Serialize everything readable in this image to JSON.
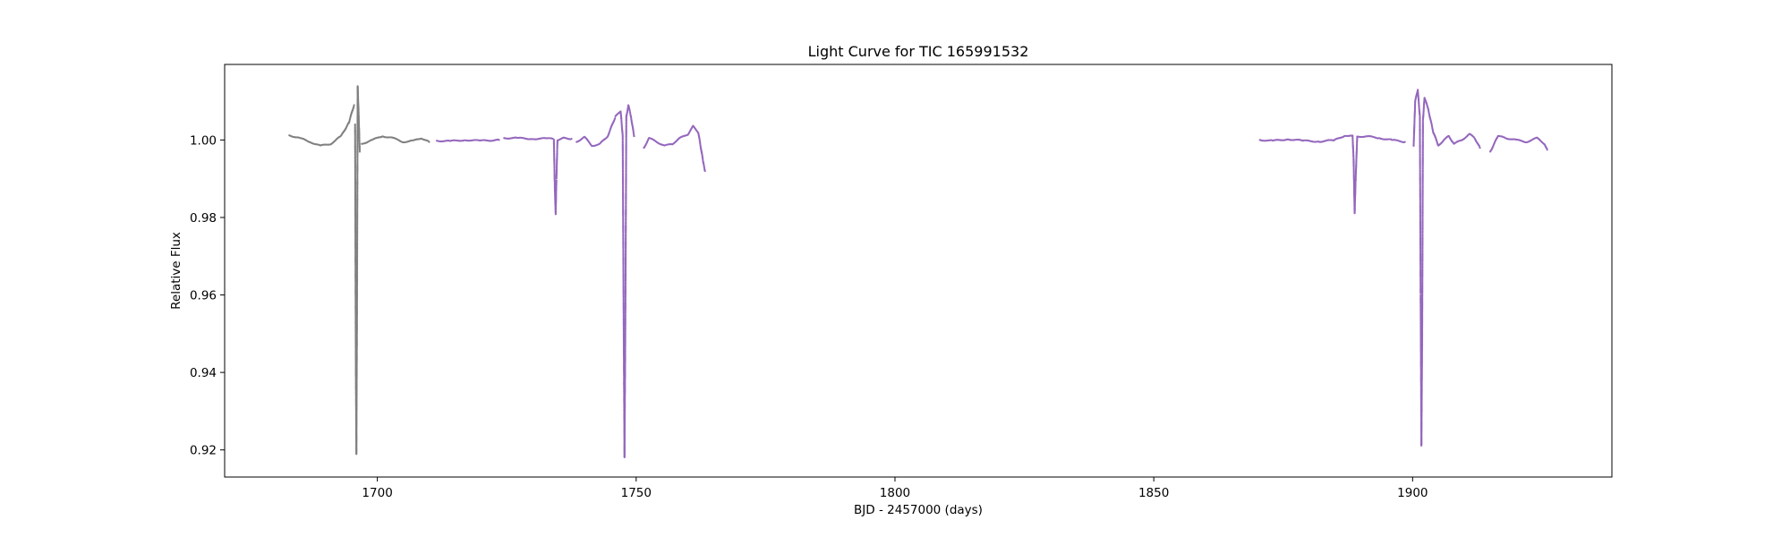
{
  "chart_data": {
    "type": "scatter",
    "title": "Light Curve for TIC 165991532",
    "xlabel": "BJD - 2457000 (days)",
    "ylabel": "Relative Flux",
    "xlim": [
      1670.5,
      1938.5
    ],
    "ylim": [
      0.913,
      1.0195
    ],
    "xticks": [
      1700,
      1750,
      1800,
      1850,
      1900
    ],
    "xtick_labels": [
      "1700",
      "1750",
      "1800",
      "1850",
      "1900"
    ],
    "yticks": [
      0.92,
      0.94,
      0.96,
      0.98,
      1.0
    ],
    "ytick_labels": [
      "0.92",
      "0.94",
      "0.96",
      "0.98",
      "1.00"
    ],
    "grid": false,
    "series": [
      {
        "color": "#808080",
        "segments": [
          [
            [
              1683.0,
              1.0012
            ],
            [
              1685.0,
              1.0005
            ],
            [
              1687.0,
              0.9995
            ],
            [
              1689.0,
              0.9985
            ],
            [
              1691.0,
              0.999
            ],
            [
              1693.0,
              1.001
            ],
            [
              1694.5,
              1.0045
            ],
            [
              1695.5,
              1.009
            ]
          ],
          [
            [
              1695.7,
              1.004
            ],
            [
              1695.85,
              0.94
            ],
            [
              1695.95,
              0.919
            ],
            [
              1696.05,
              0.95
            ],
            [
              1696.2,
              1.014
            ],
            [
              1696.4,
              1.006
            ],
            [
              1696.6,
              0.997
            ]
          ],
          [
            [
              1697.0,
              0.999
            ],
            [
              1699.0,
              1.0
            ],
            [
              1701.0,
              1.001
            ],
            [
              1703.0,
              1.0005
            ],
            [
              1705.0,
              0.9995
            ],
            [
              1707.0,
              0.9998
            ],
            [
              1708.5,
              1.0005
            ],
            [
              1710.0,
              0.9995
            ]
          ]
        ]
      },
      {
        "color": "#9467bd",
        "segments": [
          [
            [
              1711.5,
              0.9998
            ],
            [
              1714.0,
              0.9997
            ],
            [
              1717.0,
              1.0
            ],
            [
              1720.0,
              0.9998
            ],
            [
              1723.5,
              1.0
            ]
          ],
          [
            [
              1724.5,
              1.0005
            ],
            [
              1727.0,
              1.0005
            ],
            [
              1730.0,
              1.0003
            ],
            [
              1733.0,
              1.0004
            ],
            [
              1734.1,
              1.0002
            ],
            [
              1734.3,
              0.987
            ],
            [
              1734.45,
              0.981
            ],
            [
              1734.6,
              0.99
            ],
            [
              1734.8,
              1.0
            ],
            [
              1736.0,
              1.0005
            ],
            [
              1737.5,
              1.0003
            ]
          ],
          [
            [
              1738.5,
              0.9995
            ],
            [
              1740.0,
              1.0008
            ],
            [
              1741.5,
              0.9985
            ],
            [
              1743.0,
              0.999
            ],
            [
              1744.5,
              1.001
            ],
            [
              1746.0,
              1.006
            ],
            [
              1747.0,
              1.0075
            ],
            [
              1747.4,
              1.001
            ],
            [
              1747.6,
              0.95
            ],
            [
              1747.75,
              0.918
            ],
            [
              1747.9,
              0.95
            ],
            [
              1748.1,
              1.006
            ],
            [
              1748.5,
              1.009
            ],
            [
              1749.0,
              1.006
            ],
            [
              1749.6,
              1.001
            ]
          ],
          [
            [
              1751.5,
              0.998
            ],
            [
              1752.5,
              1.0005
            ],
            [
              1754.0,
              0.9995
            ],
            [
              1755.5,
              0.9985
            ],
            [
              1757.0,
              0.999
            ],
            [
              1758.5,
              1.0005
            ],
            [
              1760.0,
              1.0015
            ],
            [
              1761.0,
              1.0035
            ],
            [
              1762.0,
              1.002
            ],
            [
              1763.0,
              0.994
            ],
            [
              1763.3,
              0.992
            ]
          ],
          [
            [
              1870.5,
              1.0
            ],
            [
              1873.0,
              0.9998
            ],
            [
              1876.0,
              1.0002
            ],
            [
              1879.0,
              0.9998
            ],
            [
              1882.0,
              0.9996
            ],
            [
              1885.0,
              1.0
            ],
            [
              1887.0,
              1.0012
            ],
            [
              1888.4,
              1.001
            ],
            [
              1888.6,
              0.995
            ],
            [
              1888.8,
              0.981
            ],
            [
              1889.0,
              0.99
            ],
            [
              1889.3,
              1.0008
            ],
            [
              1891.0,
              1.001
            ],
            [
              1893.5,
              1.0005
            ],
            [
              1896.0,
              1.0
            ],
            [
              1898.5,
              0.9995
            ]
          ],
          [
            [
              1900.2,
              0.9985
            ],
            [
              1900.5,
              1.01
            ],
            [
              1901.0,
              1.013
            ],
            [
              1901.4,
              1.006
            ],
            [
              1901.55,
              0.96
            ],
            [
              1901.7,
              0.921
            ],
            [
              1901.85,
              0.95
            ],
            [
              1902.0,
              1.005
            ],
            [
              1902.3,
              1.011
            ],
            [
              1903.0,
              1.008
            ],
            [
              1904.0,
              1.002
            ],
            [
              1905.0,
              0.9985
            ],
            [
              1906.0,
              1.0
            ],
            [
              1907.0,
              1.001
            ],
            [
              1908.0,
              0.999
            ],
            [
              1909.5,
              1.0
            ],
            [
              1911.0,
              1.0015
            ],
            [
              1912.0,
              1.0005
            ],
            [
              1913.0,
              0.998
            ]
          ],
          [
            [
              1915.0,
              0.997
            ],
            [
              1916.5,
              1.001
            ],
            [
              1918.0,
              1.0005
            ],
            [
              1920.0,
              1.0
            ],
            [
              1922.0,
              0.9995
            ],
            [
              1924.0,
              1.0005
            ],
            [
              1925.5,
              0.999
            ],
            [
              1926.0,
              0.9975
            ]
          ]
        ]
      }
    ]
  }
}
